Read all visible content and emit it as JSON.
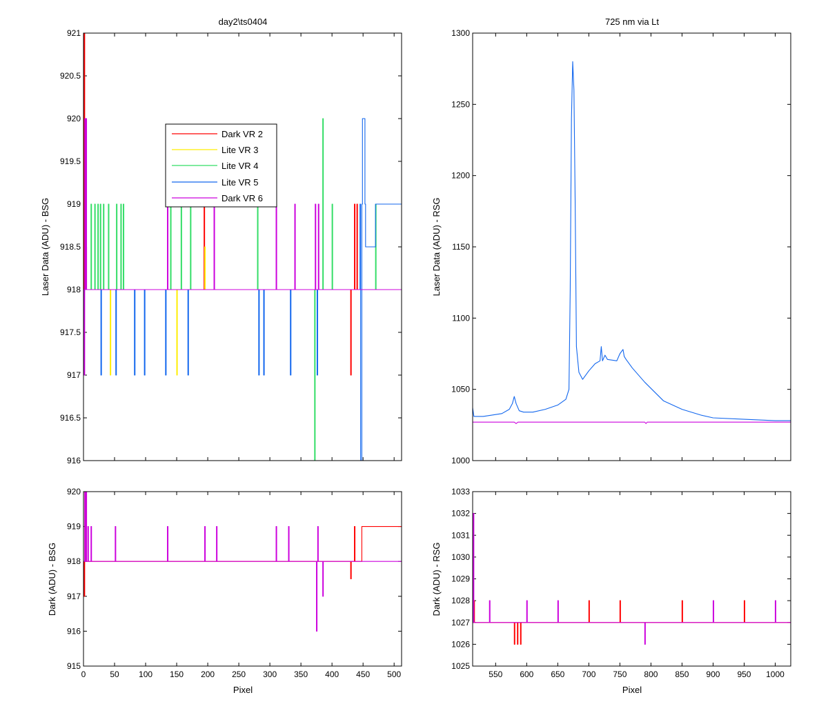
{
  "figure": {
    "background": "#ffffff"
  },
  "chart_data": [
    {
      "id": "top-left",
      "type": "line",
      "title": "day2\\ts0404",
      "xlabel": "",
      "ylabel": "Laser Data (ADU) - BSG",
      "xlim": [
        0,
        512
      ],
      "ylim": [
        916,
        921
      ],
      "xticks": [
        0,
        50,
        100,
        150,
        200,
        250,
        300,
        350,
        400,
        450,
        500
      ],
      "xtick_labels_visible": false,
      "yticks": [
        916,
        916.5,
        917,
        917.5,
        918,
        918.5,
        919,
        919.5,
        920,
        920.5,
        921
      ],
      "ytick_labels": [
        "916",
        "916.5",
        "917",
        "917.5",
        "918",
        "918.5",
        "919",
        "919.5",
        "920",
        "920.5",
        "921"
      ],
      "legend": {
        "location": "upper-center",
        "entries": [
          {
            "label": "Dark VR 2",
            "color": "#ff0000"
          },
          {
            "label": "Lite VR 3",
            "color": "#ffee00"
          },
          {
            "label": "Lite VR 4",
            "color": "#33dd66"
          },
          {
            "label": "Lite VR 5",
            "color": "#1166ee"
          },
          {
            "label": "Dark VR 6",
            "color": "#cc00dd"
          }
        ]
      },
      "series": [
        {
          "name": "Dark VR 2",
          "color": "#ff0000",
          "x": [
            0,
            1,
            1,
            2,
            2,
            3,
            3,
            4,
            4,
            5,
            5,
            194,
            194,
            195,
            195,
            430,
            430,
            431,
            431,
            436,
            436,
            437,
            437,
            440,
            440,
            441,
            441,
            512
          ],
          "y": [
            918,
            918,
            921,
            921,
            918.5,
            918.5,
            918,
            918,
            918.5,
            918.5,
            918,
            918,
            919,
            919,
            918,
            918,
            917,
            917,
            918,
            918,
            919,
            919,
            918,
            918,
            919,
            919,
            918,
            918
          ]
        },
        {
          "name": "Lite VR 3",
          "color": "#ffee00",
          "x": [
            0,
            43,
            43,
            44,
            44,
            150,
            150,
            151,
            151,
            195,
            195,
            196,
            196,
            512
          ],
          "y": [
            918,
            918,
            917,
            917,
            918,
            918,
            917,
            917,
            918,
            918,
            918.5,
            918.5,
            918,
            918
          ]
        },
        {
          "name": "Lite VR 4",
          "color": "#33dd66",
          "x": [
            0,
            12,
            12,
            13,
            13,
            18,
            18,
            19,
            19,
            23,
            23,
            24,
            24,
            27,
            27,
            28,
            28,
            32,
            32,
            33,
            33,
            40,
            40,
            41,
            41,
            53,
            53,
            54,
            54,
            60,
            60,
            61,
            61,
            64,
            64,
            65,
            65,
            140,
            140,
            141,
            141,
            157,
            157,
            158,
            158,
            172,
            172,
            173,
            173,
            280,
            280,
            281,
            281,
            372,
            372,
            373,
            373,
            385,
            385,
            386,
            386,
            400,
            400,
            401,
            401,
            470,
            470,
            471,
            471,
            512
          ],
          "y": [
            918,
            918,
            919,
            919,
            918,
            918,
            919,
            919,
            918,
            918,
            919,
            919,
            918,
            918,
            919,
            919,
            918,
            918,
            919,
            919,
            918,
            918,
            919,
            919,
            918,
            918,
            919,
            919,
            918,
            918,
            919,
            919,
            918,
            918,
            919,
            919,
            918,
            918,
            919,
            919,
            918,
            918,
            919,
            919,
            918,
            918,
            919,
            919,
            918,
            918,
            919,
            919,
            918,
            918,
            916,
            916,
            918,
            918,
            920,
            920,
            918,
            918,
            919,
            919,
            918,
            918,
            919,
            919,
            918,
            918
          ]
        },
        {
          "name": "Lite VR 5",
          "color": "#1166ee",
          "x": [
            0,
            28,
            28,
            29,
            29,
            52,
            52,
            53,
            53,
            82,
            82,
            83,
            83,
            98,
            98,
            99,
            99,
            132,
            132,
            133,
            133,
            168,
            168,
            169,
            169,
            282,
            282,
            283,
            283,
            290,
            290,
            291,
            291,
            333,
            333,
            334,
            334,
            376,
            376,
            377,
            377,
            445,
            445,
            446,
            446,
            448,
            448,
            449,
            449,
            453,
            453,
            454,
            454,
            470,
            470,
            471,
            471,
            512
          ],
          "y": [
            918,
            918,
            917,
            917,
            918,
            918,
            917,
            917,
            918,
            918,
            917,
            917,
            918,
            918,
            917,
            917,
            918,
            918,
            917,
            917,
            918,
            918,
            917,
            917,
            918,
            918,
            917,
            917,
            918,
            918,
            917,
            917,
            918,
            918,
            917,
            917,
            918,
            918,
            917,
            917,
            918,
            918,
            919,
            919,
            916,
            916,
            919,
            919,
            920,
            920,
            919,
            919,
            918.5,
            918.5,
            919,
            919,
            919,
            919
          ]
        },
        {
          "name": "Dark VR 6",
          "color": "#cc00dd",
          "x": [
            0,
            1,
            1,
            2,
            2,
            3,
            3,
            4,
            4,
            5,
            5,
            6,
            6,
            135,
            135,
            136,
            136,
            210,
            210,
            211,
            211,
            310,
            310,
            311,
            311,
            340,
            340,
            341,
            341,
            373,
            373,
            374,
            374,
            378,
            378,
            379,
            379,
            512
          ],
          "y": [
            918,
            918,
            917,
            917,
            920,
            920,
            918,
            918,
            920,
            920,
            918,
            918,
            918,
            918,
            919,
            919,
            918,
            918,
            919,
            919,
            918,
            918,
            919,
            919,
            918,
            918,
            919,
            919,
            918,
            918,
            919,
            919,
            918,
            918,
            919,
            919,
            918,
            918
          ]
        }
      ]
    },
    {
      "id": "top-right",
      "type": "line",
      "title": "725 nm via Lt",
      "xlabel": "",
      "ylabel": "Laser Data (ADU) - RSG",
      "xlim": [
        513,
        1025
      ],
      "ylim": [
        1000,
        1300
      ],
      "xticks": [
        550,
        600,
        650,
        700,
        750,
        800,
        850,
        900,
        950,
        1000
      ],
      "xtick_labels_visible": false,
      "yticks": [
        1000,
        1050,
        1100,
        1150,
        1200,
        1250,
        1300
      ],
      "ytick_labels": [
        "1000",
        "1050",
        "1100",
        "1150",
        "1200",
        "1250",
        "1300"
      ],
      "series": [
        {
          "name": "",
          "color": "#1166ee",
          "x": [
            513,
            515,
            530,
            560,
            572,
            577,
            580,
            583,
            588,
            595,
            610,
            630,
            650,
            663,
            668,
            670,
            672,
            674,
            676,
            678,
            680,
            684,
            690,
            700,
            710,
            718,
            720,
            722,
            724,
            726,
            730,
            745,
            750,
            755,
            757,
            760,
            770,
            790,
            820,
            850,
            880,
            900,
            950,
            1000,
            1025
          ],
          "y": [
            1037,
            1031,
            1031,
            1033,
            1036,
            1040,
            1045,
            1040,
            1035,
            1034,
            1034,
            1036,
            1039,
            1043,
            1050,
            1120,
            1240,
            1280,
            1260,
            1180,
            1080,
            1062,
            1057,
            1063,
            1068,
            1070,
            1080,
            1070,
            1072,
            1074,
            1071,
            1070,
            1075,
            1078,
            1073,
            1071,
            1065,
            1055,
            1042,
            1036,
            1032,
            1030,
            1029,
            1028,
            1028
          ]
        },
        {
          "name": "",
          "color": "#cc00dd",
          "x": [
            513,
            520,
            530,
            560,
            580,
            583,
            586,
            600,
            650,
            700,
            750,
            790,
            792,
            794,
            800,
            900,
            1000,
            1025
          ],
          "y": [
            1027,
            1027,
            1027,
            1027,
            1027,
            1026,
            1027,
            1027,
            1027,
            1027,
            1027,
            1027,
            1026,
            1027,
            1027,
            1027,
            1027,
            1027
          ]
        }
      ]
    },
    {
      "id": "bottom-left",
      "type": "line",
      "title": "",
      "xlabel": "Pixel",
      "ylabel": "Dark (ADU) - BSG",
      "xlim": [
        0,
        512
      ],
      "ylim": [
        915,
        920
      ],
      "xticks": [
        0,
        50,
        100,
        150,
        200,
        250,
        300,
        350,
        400,
        450,
        500
      ],
      "xtick_labels": [
        "0",
        "50",
        "100",
        "150",
        "200",
        "250",
        "300",
        "350",
        "400",
        "450",
        "500"
      ],
      "yticks": [
        915,
        916,
        917,
        918,
        919,
        920
      ],
      "ytick_labels": [
        "915",
        "916",
        "917",
        "918",
        "919",
        "920"
      ],
      "series": [
        {
          "name": "",
          "color": "#ff0000",
          "x": [
            0,
            1,
            1,
            2,
            2,
            3,
            3,
            4,
            4,
            5,
            5,
            6,
            6,
            430,
            430,
            431,
            431,
            436,
            436,
            437,
            437,
            448,
            448,
            512
          ],
          "y": [
            918,
            918,
            917,
            917,
            920,
            920,
            918.5,
            918.5,
            920,
            920,
            918,
            918,
            918,
            918,
            917.5,
            917.5,
            918,
            918,
            919,
            919,
            918,
            918,
            919,
            919
          ]
        },
        {
          "name": "",
          "color": "#cc00dd",
          "x": [
            0,
            2,
            2,
            3,
            3,
            4,
            4,
            5,
            5,
            7,
            7,
            8,
            8,
            12,
            12,
            13,
            13,
            51,
            51,
            52,
            52,
            135,
            135,
            136,
            136,
            195,
            195,
            196,
            196,
            214,
            214,
            215,
            215,
            310,
            310,
            311,
            311,
            330,
            330,
            331,
            331,
            375,
            375,
            376,
            376,
            377,
            377,
            378,
            378,
            385,
            385,
            386,
            386,
            425,
            425,
            512
          ],
          "y": [
            918,
            918,
            920,
            920,
            918,
            918,
            920,
            920,
            918,
            918,
            919,
            919,
            918,
            918,
            919,
            919,
            918,
            918,
            919,
            919,
            918,
            918,
            919,
            919,
            918,
            918,
            919,
            919,
            918,
            918,
            919,
            919,
            918,
            918,
            919,
            919,
            918,
            918,
            919,
            919,
            918,
            918,
            916,
            916,
            918,
            918,
            919,
            919,
            918,
            918,
            917,
            917,
            918,
            918,
            918,
            918
          ]
        }
      ]
    },
    {
      "id": "bottom-right",
      "type": "line",
      "title": "",
      "xlabel": "Pixel",
      "ylabel": "Dark (ADU) - RSG",
      "xlim": [
        513,
        1025
      ],
      "ylim": [
        1025,
        1033
      ],
      "xticks": [
        550,
        600,
        650,
        700,
        750,
        800,
        850,
        900,
        950,
        1000
      ],
      "xtick_labels": [
        "550",
        "600",
        "650",
        "700",
        "750",
        "800",
        "850",
        "900",
        "950",
        "1000"
      ],
      "yticks": [
        1025,
        1026,
        1027,
        1028,
        1029,
        1030,
        1031,
        1032,
        1033
      ],
      "ytick_labels": [
        "1025",
        "1026",
        "1027",
        "1028",
        "1029",
        "1030",
        "1031",
        "1032",
        "1033"
      ],
      "series": [
        {
          "name": "",
          "color": "#ff0000",
          "x": [
            513,
            515,
            515,
            516,
            516,
            580,
            580,
            581,
            581,
            585,
            585,
            586,
            586,
            590,
            590,
            591,
            591,
            700,
            700,
            701,
            701,
            750,
            750,
            751,
            751,
            850,
            850,
            851,
            851,
            950,
            950,
            951,
            951,
            1025
          ],
          "y": [
            1027,
            1027,
            1028,
            1028,
            1027,
            1027,
            1026,
            1026,
            1027,
            1027,
            1026,
            1026,
            1027,
            1027,
            1026,
            1026,
            1027,
            1027,
            1028,
            1028,
            1027,
            1027,
            1028,
            1028,
            1027,
            1027,
            1028,
            1028,
            1027,
            1027,
            1028,
            1028,
            1027,
            1027
          ]
        },
        {
          "name": "",
          "color": "#cc00dd",
          "x": [
            513,
            514,
            514,
            515,
            515,
            540,
            540,
            541,
            541,
            600,
            600,
            601,
            601,
            650,
            650,
            651,
            651,
            790,
            790,
            791,
            791,
            793,
            793,
            794,
            794,
            900,
            900,
            901,
            901,
            1000,
            1000,
            1001,
            1001,
            1025
          ],
          "y": [
            1027,
            1027,
            1032,
            1032,
            1027,
            1027,
            1028,
            1028,
            1027,
            1027,
            1028,
            1028,
            1027,
            1027,
            1028,
            1028,
            1027,
            1027,
            1026,
            1026,
            1027,
            1027,
            1027,
            1027,
            1027,
            1027,
            1028,
            1028,
            1027,
            1027,
            1028,
            1028,
            1027,
            1027
          ]
        }
      ]
    }
  ]
}
